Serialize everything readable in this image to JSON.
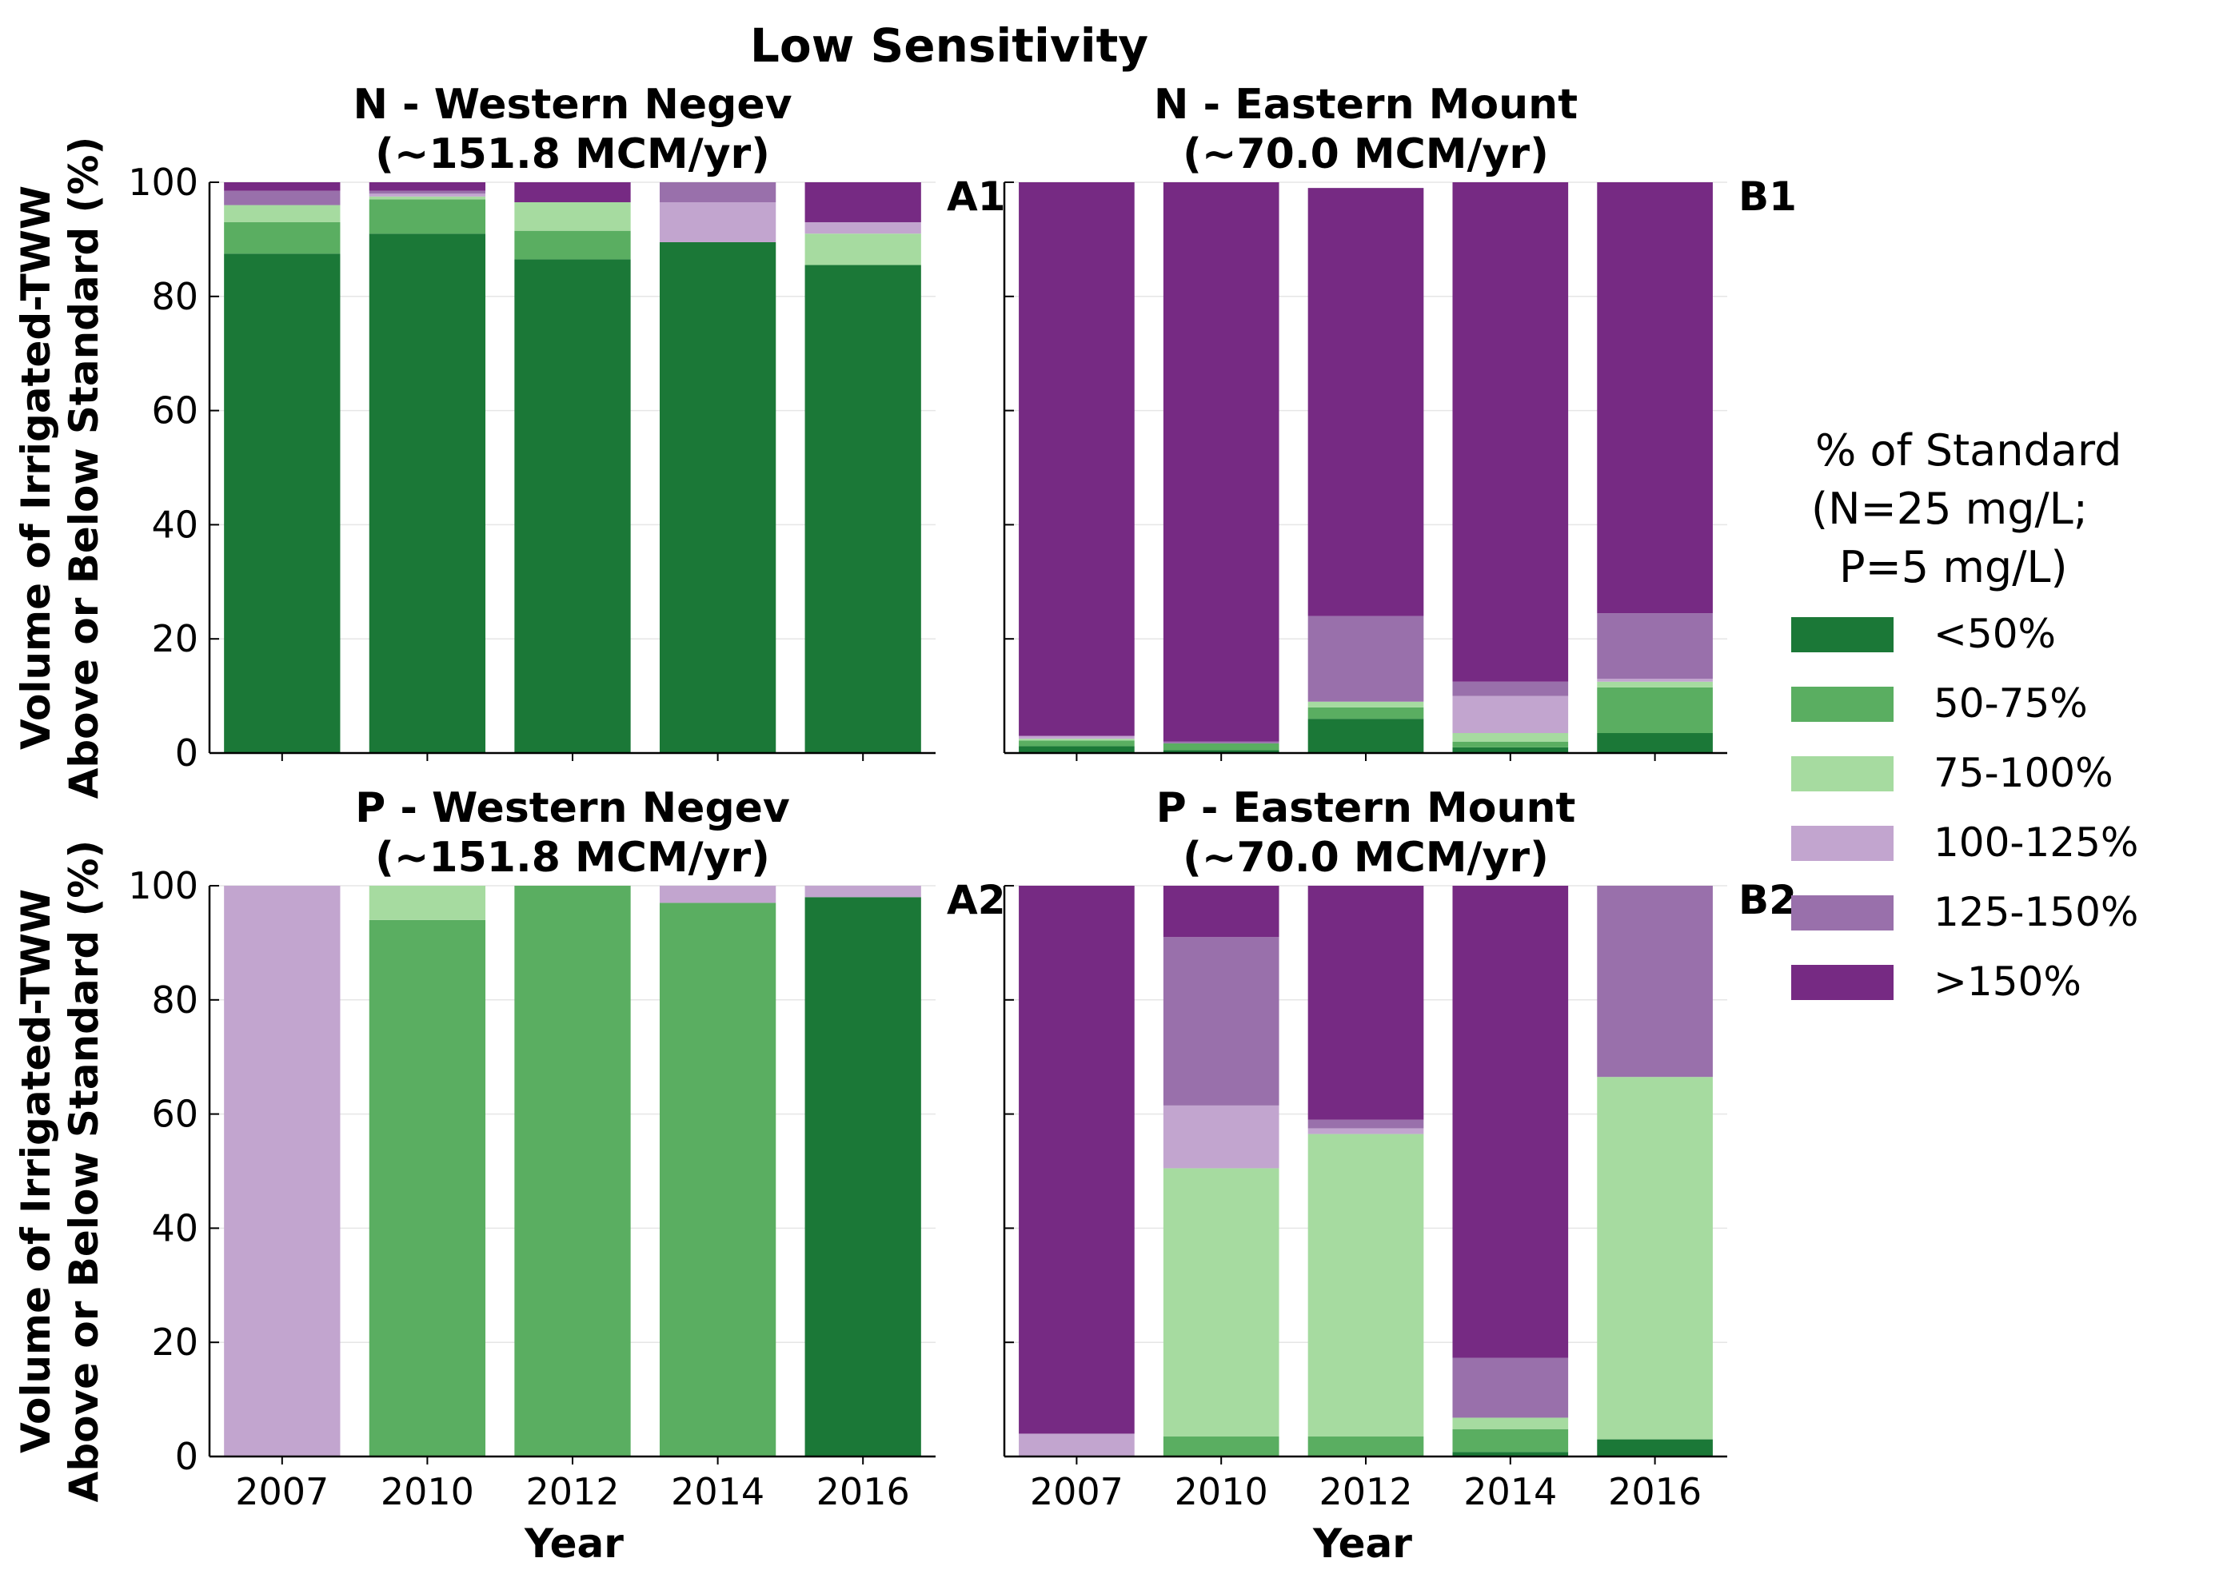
{
  "chart_data": {
    "type": "bar",
    "stacked": true,
    "title": "Low Sensitivity",
    "categories": [
      "2007",
      "2010",
      "2012",
      "2014",
      "2016"
    ],
    "xlabel": "Year",
    "ylabel_line1": "Volume of Irrigated-TWW",
    "ylabel_line2": "Above or Below Standard (%)",
    "ylim": [
      0,
      100
    ],
    "yticks": [
      0,
      20,
      40,
      60,
      80,
      100
    ],
    "grid": true,
    "legend": {
      "title_lines": [
        "% of Standard",
        "(N=25 mg/L;",
        "P=5 mg/L)"
      ],
      "placement": "right",
      "entries": [
        {
          "name": "<50%",
          "color": "#1b7837"
        },
        {
          "name": "50-75%",
          "color": "#5aae61"
        },
        {
          "name": "75-100%",
          "color": "#a6dba0"
        },
        {
          "name": "100-125%",
          "color": "#c2a5cf"
        },
        {
          "name": "125-150%",
          "color": "#9970ab"
        },
        {
          "name": ">150%",
          "color": "#762a83"
        }
      ]
    },
    "panels": [
      {
        "label": "A1",
        "title_line1": "N - Western Negev",
        "title_line2": "(~151.8 MCM/yr)",
        "series": [
          {
            "name": "<50%",
            "values": [
              87.5,
              91,
              86.5,
              89.5,
              85.5
            ]
          },
          {
            "name": "50-75%",
            "values": [
              5.5,
              6,
              5,
              0,
              0
            ]
          },
          {
            "name": "75-100%",
            "values": [
              3,
              0.5,
              5,
              0,
              5.5
            ]
          },
          {
            "name": "100-125%",
            "values": [
              0,
              0.5,
              0,
              7,
              2
            ]
          },
          {
            "name": "125-150%",
            "values": [
              2.5,
              0.5,
              0,
              3.5,
              0
            ]
          },
          {
            "name": ">150%",
            "values": [
              1.5,
              1.5,
              3.5,
              0,
              7
            ]
          }
        ]
      },
      {
        "label": "B1",
        "title_line1": "N - Eastern Mount",
        "title_line2": "(~70.0 MCM/yr)",
        "series": [
          {
            "name": "<50%",
            "values": [
              1.2,
              0.5,
              6,
              1,
              3.5
            ]
          },
          {
            "name": "50-75%",
            "values": [
              1,
              1.2,
              2,
              1,
              8
            ]
          },
          {
            "name": "75-100%",
            "values": [
              0.3,
              0,
              1,
              1.5,
              1
            ]
          },
          {
            "name": "100-125%",
            "values": [
              0.5,
              0,
              0,
              6.5,
              0.5
            ]
          },
          {
            "name": "125-150%",
            "values": [
              0,
              0.3,
              15,
              2.5,
              11.5
            ]
          },
          {
            "name": ">150%",
            "values": [
              97,
              98,
              75,
              87.5,
              75.5
            ]
          }
        ]
      },
      {
        "label": "A2",
        "title_line1": "P - Western Negev",
        "title_line2": "(~151.8 MCM/yr)",
        "series": [
          {
            "name": "<50%",
            "values": [
              0,
              0,
              0,
              0,
              98
            ]
          },
          {
            "name": "50-75%",
            "values": [
              0,
              94,
              100,
              97,
              0
            ]
          },
          {
            "name": "75-100%",
            "values": [
              0,
              6,
              0,
              0,
              0
            ]
          },
          {
            "name": "100-125%",
            "values": [
              100,
              0,
              0,
              3,
              2
            ]
          },
          {
            "name": "125-150%",
            "values": [
              0,
              0,
              0,
              0,
              0
            ]
          },
          {
            "name": ">150%",
            "values": [
              0,
              0,
              0,
              0,
              0
            ]
          }
        ]
      },
      {
        "label": "B2",
        "title_line1": "P - Eastern Mount",
        "title_line2": "(~70.0 MCM/yr)",
        "series": [
          {
            "name": "<50%",
            "values": [
              0,
              0,
              0,
              0.8,
              3
            ]
          },
          {
            "name": "50-75%",
            "values": [
              0,
              3.5,
              3.5,
              4,
              0
            ]
          },
          {
            "name": "75-100%",
            "values": [
              0,
              47,
              53,
              2,
              63.5
            ]
          },
          {
            "name": "100-125%",
            "values": [
              4,
              11,
              1,
              0,
              0
            ]
          },
          {
            "name": "125-150%",
            "values": [
              0,
              29.5,
              1.5,
              10.5,
              33.5
            ]
          },
          {
            "name": ">150%",
            "values": [
              96,
              9,
              41,
              82.7,
              0
            ]
          }
        ]
      }
    ]
  }
}
